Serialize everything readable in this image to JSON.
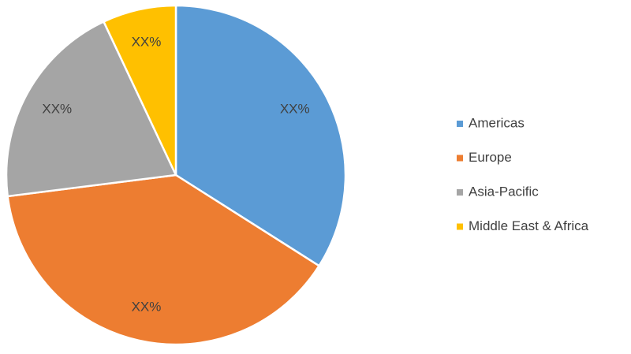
{
  "chart_data": {
    "type": "pie",
    "categories": [
      "Americas",
      "Europe",
      "Asia-Pacific",
      "Middle East & Africa"
    ],
    "values": [
      34,
      39,
      20,
      7
    ],
    "value_labels": [
      "XX%",
      "XX%",
      "XX%",
      "XX%"
    ],
    "colors": [
      "#5b9bd5",
      "#ed7d31",
      "#a5a5a5",
      "#ffc000"
    ],
    "legend": "right"
  }
}
